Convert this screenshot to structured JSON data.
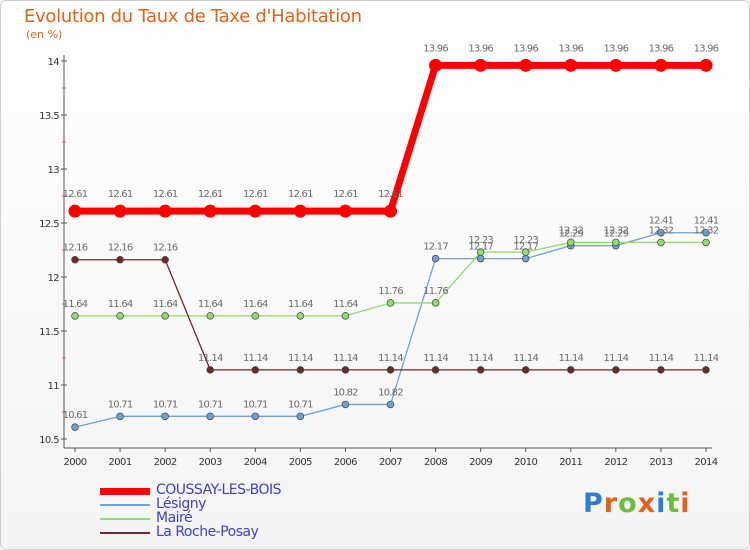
{
  "title": "Evolution du Taux de Taxe d'Habitation",
  "subtitle": "(en %)",
  "brand": {
    "letters": [
      {
        "ch": "P",
        "color": "#2a7fd4"
      },
      {
        "ch": "r",
        "color": "#e0621b"
      },
      {
        "ch": "o",
        "color": "#6bbf3a"
      },
      {
        "ch": "x",
        "color": "#e0621b"
      },
      {
        "ch": "i",
        "color": "#2a7fd4"
      },
      {
        "ch": "t",
        "color": "#6bbf3a"
      },
      {
        "ch": "i",
        "color": "#e0621b"
      }
    ]
  },
  "chart_data": {
    "type": "line",
    "title": "Evolution du Taux de Taxe d'Habitation",
    "ylabel": "(en %)",
    "xlabel": "",
    "ylim": [
      10.5,
      14
    ],
    "y_ticks": [
      "10.5",
      "11",
      "11.5",
      "12",
      "12.5",
      "13",
      "13.5",
      "14"
    ],
    "y_tick_values": [
      10.5,
      11,
      11.5,
      12,
      12.5,
      13,
      13.5,
      14
    ],
    "categories": [
      "2000",
      "2001",
      "2002",
      "2003",
      "2004",
      "2005",
      "2006",
      "2007",
      "2008",
      "2009",
      "2010",
      "2011",
      "2012",
      "2013",
      "2014"
    ],
    "grid": false,
    "legend_position": "bottom-left",
    "series": [
      {
        "name": "COUSSAY-LES-BOIS",
        "color": "#ff0000",
        "emphasis": true,
        "values": [
          12.61,
          12.61,
          12.61,
          12.61,
          12.61,
          12.61,
          12.61,
          12.61,
          13.96,
          13.96,
          13.96,
          13.96,
          13.96,
          13.96,
          13.96
        ]
      },
      {
        "name": "Lésigny",
        "color": "#6fa1d2",
        "emphasis": false,
        "values": [
          10.61,
          10.71,
          10.71,
          10.71,
          10.71,
          10.71,
          10.82,
          10.82,
          12.17,
          12.17,
          12.17,
          12.29,
          12.29,
          12.41,
          12.41
        ]
      },
      {
        "name": "Mairé",
        "color": "#8fdc6f",
        "emphasis": false,
        "values": [
          11.64,
          11.64,
          11.64,
          11.64,
          11.64,
          11.64,
          11.64,
          11.76,
          11.76,
          12.23,
          12.23,
          12.32,
          12.32,
          12.32,
          12.32
        ]
      },
      {
        "name": "La Roche-Posay",
        "color": "#6b2a2a",
        "emphasis": false,
        "values": [
          12.16,
          12.16,
          12.16,
          11.14,
          11.14,
          11.14,
          11.14,
          11.14,
          11.14,
          11.14,
          11.14,
          11.14,
          11.14,
          11.14,
          11.14
        ]
      }
    ]
  }
}
